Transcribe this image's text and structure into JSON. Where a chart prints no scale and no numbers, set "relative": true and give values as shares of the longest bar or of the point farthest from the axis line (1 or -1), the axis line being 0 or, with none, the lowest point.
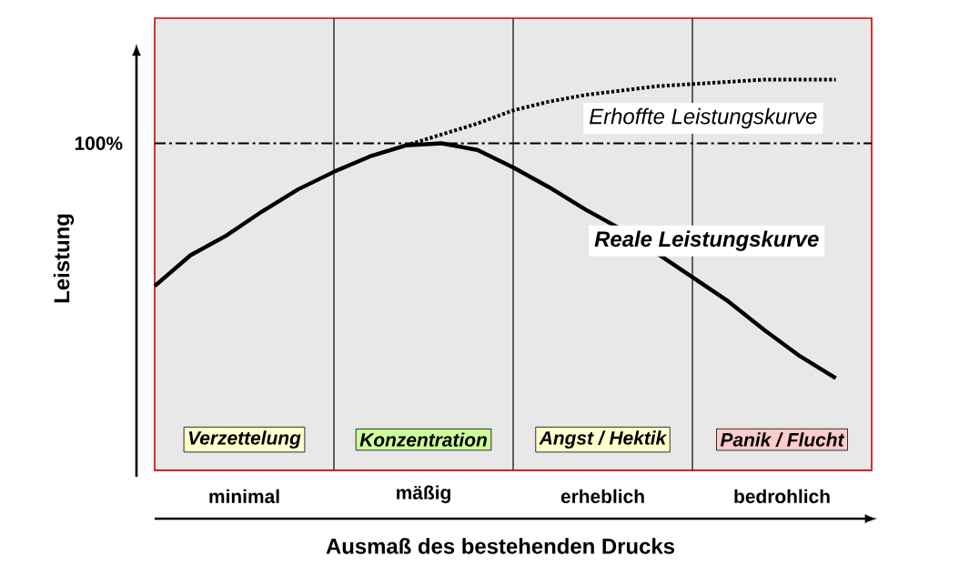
{
  "chart_data": {
    "type": "line",
    "relative": true,
    "grid": "x",
    "xlabel": "Ausmaß des bestehenden Drucks",
    "ylabel": "Leistung",
    "categories": [
      null,
      null,
      null,
      null,
      null,
      null,
      null,
      null,
      null,
      null,
      null,
      null,
      null,
      null,
      null,
      null,
      null,
      null,
      null,
      null
    ],
    "series": [
      {
        "name": "Erhoffte Leistungskurve",
        "color": "#000000",
        "line_style": "dotted",
        "values": [
          null,
          null,
          null,
          null,
          null,
          null,
          null,
          0.85,
          0.875,
          0.9,
          0.93,
          0.95,
          0.965,
          0.975,
          0.985,
          0.99,
          0.995,
          1.0,
          1.0,
          1.0
        ]
      },
      {
        "name": "Reale Leistungskurve",
        "color": "#000000",
        "line_style": "solid",
        "values": [
          0.53,
          0.6,
          0.645,
          0.7,
          0.75,
          0.79,
          0.825,
          0.85,
          0.855,
          0.84,
          0.8,
          0.755,
          0.705,
          0.66,
          0.605,
          0.55,
          0.495,
          0.43,
          0.37,
          0.32
        ]
      }
    ],
    "ref_lines": [
      {
        "axis": "y",
        "value": 0.855,
        "line_style": "dashed"
      }
    ],
    "annotations": [
      "minimal",
      "mäßig",
      "erheblich",
      "bedrohlich",
      "Verzettelung",
      "Konzentration",
      "Angst / Hektik",
      "Panik / Flucht",
      "100%"
    ]
  }
}
